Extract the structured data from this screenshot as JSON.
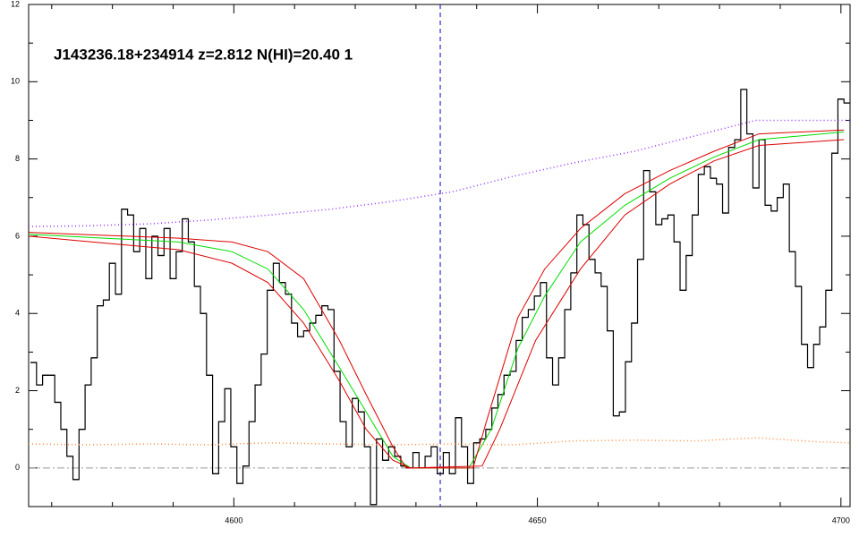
{
  "chart_data": {
    "type": "line",
    "title": "J143236.18+234914 z=2.812 N(HI)=20.40 1",
    "xlim": [
      4566.2,
      4701.5
    ],
    "ylim": [
      -1,
      12
    ],
    "xticks": [
      4600,
      4650,
      4700
    ],
    "yticks": [
      0,
      2,
      4,
      6,
      8,
      10,
      12
    ],
    "xminorticks": [
      4570,
      4580,
      4590,
      4610,
      4620,
      4630,
      4640,
      4660,
      4670,
      4680,
      4690
    ],
    "yminorticks": [
      -1,
      1,
      3,
      5,
      7,
      9,
      11
    ],
    "vline": {
      "value": 4634,
      "color": "#0000cc"
    },
    "hline": {
      "value": 0,
      "color": "#999999"
    },
    "series": [
      {
        "color": "#000000",
        "step": true,
        "dash": "solid",
        "x": [
          4567,
          4568,
          4569,
          4570,
          4571,
          4572,
          4573,
          4574,
          4575,
          4576,
          4577,
          4578,
          4579,
          4580,
          4581,
          4582,
          4583,
          4584,
          4585,
          4586,
          4587,
          4588,
          4589,
          4590,
          4591,
          4592,
          4593,
          4594,
          4595,
          4596,
          4597,
          4598,
          4599,
          4600,
          4601,
          4602,
          4603,
          4604,
          4605,
          4606,
          4607,
          4608,
          4609,
          4610,
          4611,
          4612,
          4613,
          4614,
          4615,
          4616,
          4617,
          4618,
          4619,
          4620,
          4621,
          4622,
          4623,
          4624,
          4625,
          4626,
          4627,
          4628,
          4629,
          4630,
          4631,
          4632,
          4633,
          4634,
          4635,
          4636,
          4637,
          4638,
          4639,
          4640,
          4641,
          4642,
          4643,
          4644,
          4645,
          4646,
          4647,
          4648,
          4649,
          4650,
          4651,
          4652,
          4653,
          4654,
          4655,
          4656,
          4657,
          4658,
          4659,
          4660,
          4661,
          4662,
          4663,
          4664,
          4665,
          4666,
          4667,
          4668,
          4669,
          4670,
          4671,
          4672,
          4673,
          4674,
          4675,
          4676,
          4677,
          4678,
          4679,
          4680,
          4681,
          4682,
          4683,
          4684,
          4685,
          4686,
          4687,
          4688,
          4689,
          4690,
          4691,
          4692,
          4693,
          4694,
          4695,
          4696,
          4697,
          4698,
          4699,
          4700,
          4701
        ],
        "values": [
          2.73,
          2.15,
          2.4,
          2.4,
          1.7,
          1.0,
          0.3,
          -0.3,
          1.0,
          2.15,
          2.85,
          4.2,
          4.35,
          5.3,
          4.5,
          6.7,
          6.55,
          5.6,
          6.2,
          4.9,
          6.0,
          5.5,
          6.2,
          4.9,
          5.6,
          6.45,
          5.85,
          4.7,
          4.0,
          2.4,
          -0.15,
          1.2,
          2.05,
          0.55,
          -0.4,
          0.05,
          1.2,
          2.15,
          2.95,
          4.6,
          5.3,
          4.8,
          4.5,
          3.75,
          3.4,
          3.55,
          3.75,
          3.95,
          4.2,
          4.1,
          2.5,
          1.2,
          0.55,
          1.8,
          1.45,
          0.55,
          -0.95,
          0.75,
          0.2,
          0.55,
          0.3,
          0.05,
          0,
          0.4,
          0,
          0.3,
          0.55,
          -0.15,
          0.4,
          -0.15,
          1.3,
          0.55,
          -0.4,
          0.65,
          0.75,
          1.0,
          1.55,
          1.9,
          2.4,
          2.5,
          3.3,
          3.9,
          4.1,
          4.45,
          4.8,
          2.85,
          2.15,
          2.85,
          4.1,
          5.05,
          6.55,
          6.3,
          5.4,
          5.05,
          4.7,
          3.55,
          1.35,
          1.45,
          2.75,
          3.75,
          5.4,
          7.7,
          7.15,
          6.3,
          6.45,
          6.55,
          5.85,
          4.6,
          5.5,
          6.55,
          7.6,
          7.8,
          7.5,
          7.35,
          6.6,
          8.3,
          8.5,
          9.8,
          8.65,
          7.25,
          8.5,
          6.8,
          6.65,
          7.0,
          7.35,
          5.6,
          4.7,
          3.2,
          2.6,
          3.2,
          3.65,
          4.6,
          8.15,
          9.55,
          9.45
        ]
      },
      {
        "color": "#9933ff",
        "dash": "dotted",
        "x": [
          4566.2,
          4576,
          4586,
          4596,
          4606,
          4616,
          4626,
          4636,
          4646,
          4656,
          4666,
          4676,
          4686,
          4696,
          4701.5
        ],
        "values": [
          6.25,
          6.27,
          6.32,
          6.42,
          6.55,
          6.7,
          6.9,
          7.15,
          7.55,
          7.9,
          8.2,
          8.6,
          9.0,
          9.0,
          9.0
        ]
      },
      {
        "color": "#ff8c40",
        "dash": "dotted",
        "x": [
          4566.2,
          4576,
          4586,
          4596,
          4606,
          4616,
          4626,
          4636,
          4646,
          4656,
          4666,
          4676,
          4686,
          4696,
          4701.5
        ],
        "values": [
          0.62,
          0.6,
          0.62,
          0.6,
          0.65,
          0.62,
          0.6,
          0.62,
          0.6,
          0.7,
          0.72,
          0.7,
          0.78,
          0.68,
          0.65
        ]
      },
      {
        "color": "#00dd00",
        "dash": "solid",
        "x": [
          4566.2,
          4590.9,
          4599.7,
          4605.6,
          4611.5,
          4617.4,
          4621.8,
          4626.2,
          4629.1,
          4638.7,
          4642.4,
          4646.8,
          4651.2,
          4657.1,
          4664.4,
          4671.8,
          4679.1,
          4686.5,
          4700.5
        ],
        "values": [
          6.05,
          5.85,
          5.6,
          5.15,
          4.1,
          2.6,
          1.45,
          0.3,
          0,
          0,
          1.0,
          3.1,
          4.45,
          5.85,
          6.8,
          7.5,
          8.05,
          8.5,
          8.7
        ]
      },
      {
        "color": "#dd0000",
        "dash": "solid",
        "x": [
          4566.2,
          4590.9,
          4599.7,
          4605.6,
          4611.5,
          4617.4,
          4621.8,
          4626.2,
          4628.4,
          4639.4,
          4641.6,
          4646.8,
          4651.2,
          4657.1,
          4664.4,
          4671.8,
          4679.1,
          4686.5,
          4700.5
        ],
        "values": [
          6.1,
          5.95,
          5.85,
          5.6,
          4.9,
          3.3,
          1.9,
          0.55,
          0,
          0,
          1.2,
          3.9,
          5.15,
          6.2,
          7.1,
          7.7,
          8.2,
          8.65,
          8.75
        ]
      },
      {
        "color": "#dd0000",
        "dash": "solid",
        "x": [
          4566.2,
          4590.9,
          4599.7,
          4605.6,
          4611.5,
          4617.4,
          4621.8,
          4626.2,
          4629.1,
          4640.9,
          4643.8,
          4649.7,
          4657.1,
          4664.4,
          4671.8,
          4679.1,
          4686.5,
          4700.5
        ],
        "values": [
          6.0,
          5.65,
          5.3,
          4.8,
          3.75,
          2.25,
          1.0,
          0.2,
          0,
          0.05,
          1.0,
          3.3,
          5.15,
          6.55,
          7.35,
          7.95,
          8.35,
          8.5
        ]
      }
    ]
  }
}
